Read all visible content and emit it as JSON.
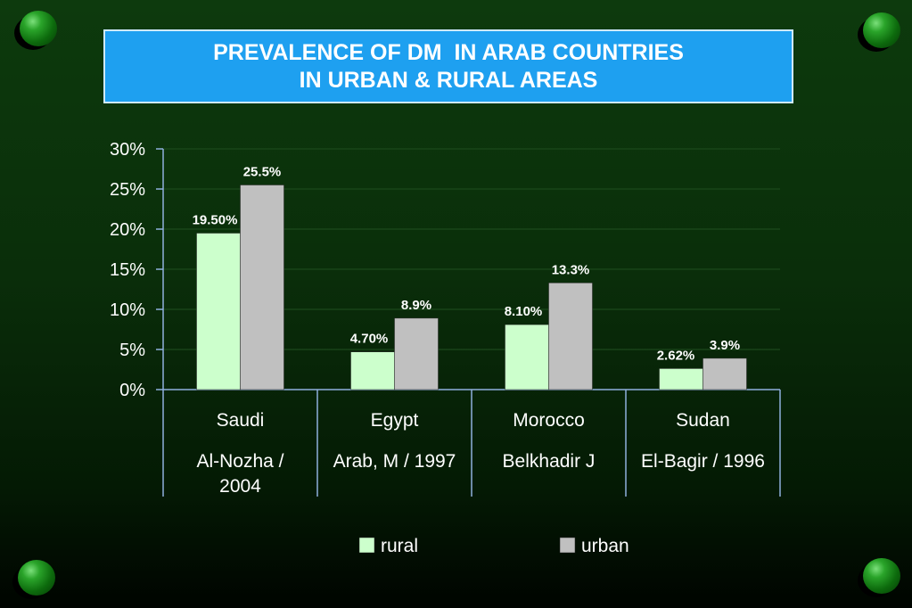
{
  "title_lines": [
    "PREVALENCE OF DM  IN ARAB COUNTRIES",
    "IN URBAN & RURAL AREAS"
  ],
  "chart_data": {
    "type": "bar",
    "categories": [
      "Saudi",
      "Egypt",
      "Morocco",
      "Sudan"
    ],
    "subcategories": [
      [
        "Al-Nozha /",
        "2004"
      ],
      [
        "Arab, M / 1997"
      ],
      [
        "Belkhadir J"
      ],
      [
        "El-Bagir / 1996"
      ]
    ],
    "series": [
      {
        "name": "rural",
        "values": [
          19.5,
          4.7,
          8.1,
          2.62
        ],
        "labels": [
          "19.50%",
          "4.70%",
          "8.10%",
          "2.62%"
        ],
        "color": "#ccffcc"
      },
      {
        "name": "urban",
        "values": [
          25.5,
          8.9,
          13.3,
          3.9
        ],
        "labels": [
          "25.5%",
          "8.9%",
          "13.3%",
          "3.9%"
        ],
        "color": "#c0c0c0"
      }
    ],
    "ylim": [
      0,
      30
    ],
    "yticks": [
      "0%",
      "5%",
      "10%",
      "15%",
      "20%",
      "25%",
      "30%"
    ],
    "grid": true,
    "legend": "bottom"
  },
  "colors": {
    "title_box": "#1ea0f0",
    "axis": "#8fb0dd",
    "gridline": "#1f4f1f",
    "text": "#ffffff"
  }
}
